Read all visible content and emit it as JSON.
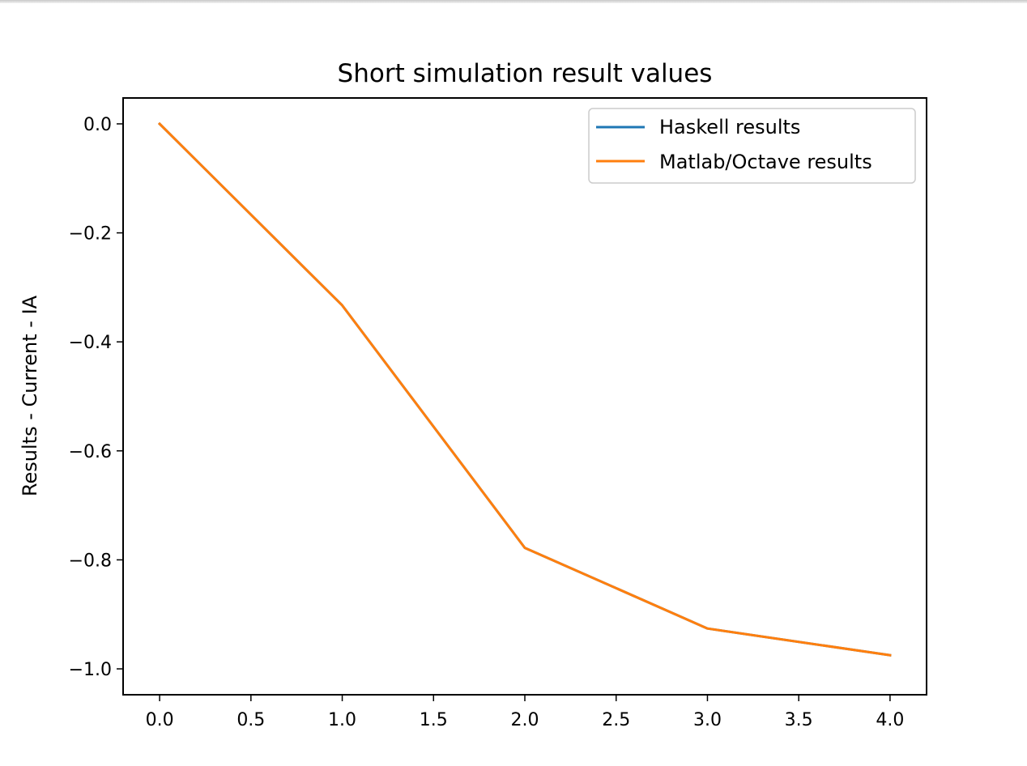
{
  "chart_data": {
    "type": "line",
    "title": "Short simulation result values",
    "xlabel": "",
    "ylabel": "Results - Current - IA",
    "xlim": [
      -0.2,
      4.2
    ],
    "ylim": [
      -1.0475,
      0.0475
    ],
    "x_ticks": [
      "0.0",
      "0.5",
      "1.0",
      "1.5",
      "2.0",
      "2.5",
      "3.0",
      "3.5",
      "4.0"
    ],
    "y_ticks": [
      "0.0",
      "−0.2",
      "−0.4",
      "−0.6",
      "−0.8",
      "−1.0"
    ],
    "x": [
      0,
      1,
      2,
      3,
      4
    ],
    "series": [
      {
        "name": "Haskell results",
        "color": "#1f77b4",
        "values": [
          0.0,
          -0.333,
          -0.778,
          -0.926,
          -0.975
        ]
      },
      {
        "name": "Matlab/Octave results",
        "color": "#ff7f0e",
        "values": [
          0.0,
          -0.333,
          -0.778,
          -0.926,
          -0.975
        ]
      }
    ],
    "grid": false,
    "legend": "top-right"
  }
}
